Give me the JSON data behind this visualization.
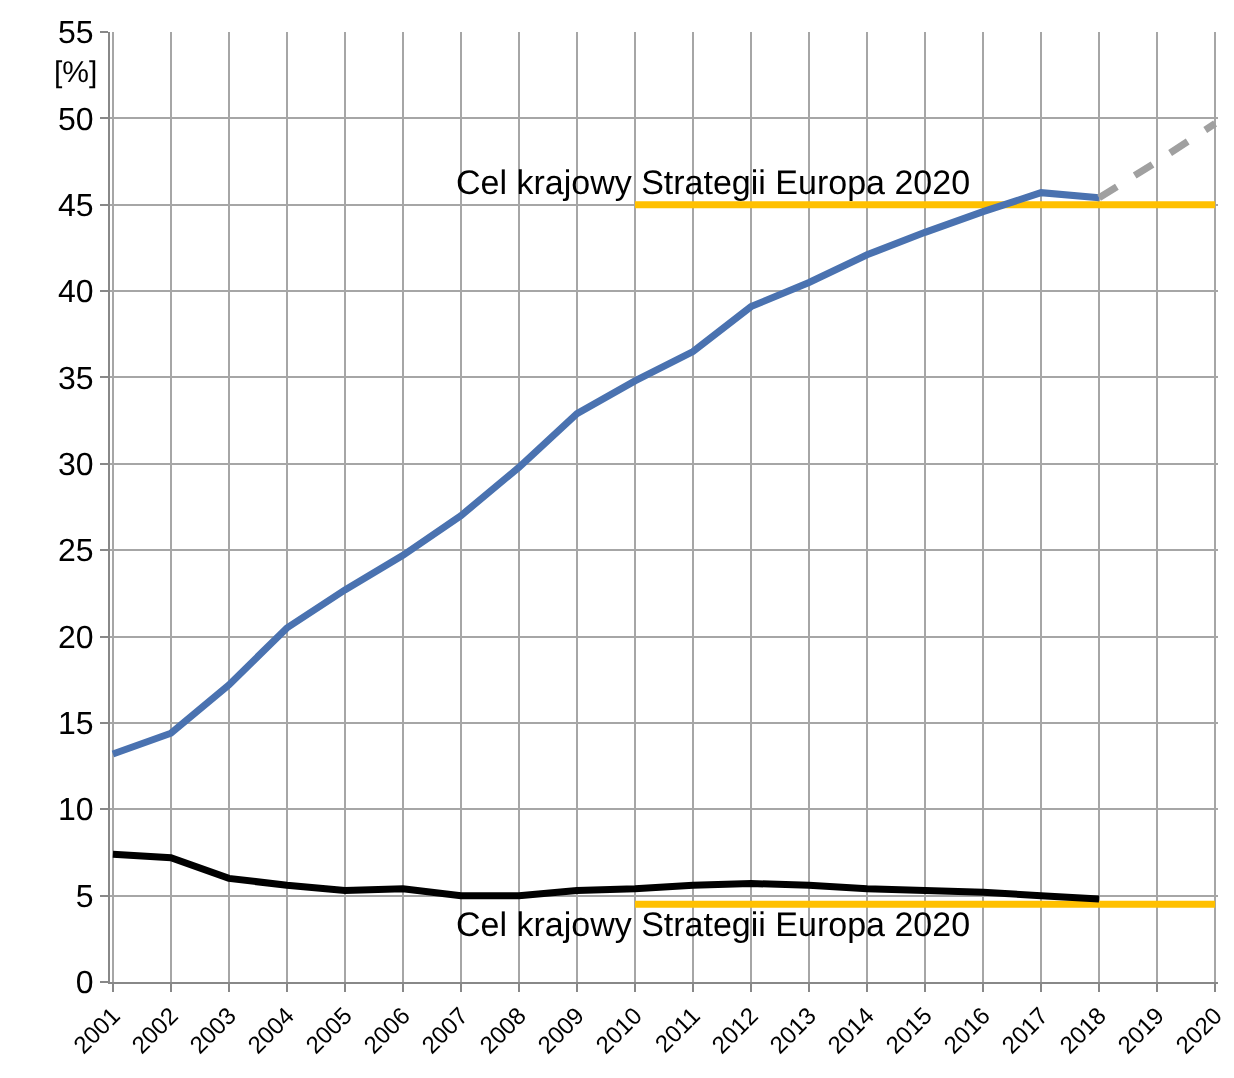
{
  "chart_data": {
    "type": "line",
    "ylabel": "[%]",
    "categories": [
      "2001",
      "2002",
      "2003",
      "2004",
      "2005",
      "2006",
      "2007",
      "2008",
      "2009",
      "2010",
      "2011",
      "2012",
      "2013",
      "2014",
      "2015",
      "2016",
      "2017",
      "2018",
      "2019",
      "2020"
    ],
    "series": [
      {
        "color": "#ffc000",
        "values": [
          null,
          null,
          null,
          null,
          null,
          null,
          null,
          null,
          null,
          45,
          45,
          45,
          45,
          45,
          45,
          45,
          45,
          45,
          45,
          45
        ]
      },
      {
        "color": "#ffc000",
        "values": [
          null,
          null,
          null,
          null,
          null,
          null,
          null,
          null,
          null,
          4.5,
          4.5,
          4.5,
          4.5,
          4.5,
          4.5,
          4.5,
          4.5,
          4.5,
          4.5,
          4.5
        ]
      },
      {
        "color": "#4a72b0",
        "values": [
          13.2,
          14.4,
          17.2,
          20.5,
          22.7,
          24.7,
          27.0,
          29.8,
          32.9,
          34.8,
          36.5,
          39.1,
          40.5,
          42.1,
          43.4,
          44.6,
          45.7,
          45.4,
          null,
          null
        ]
      },
      {
        "color": "#a0a0a0",
        "line_style": "dashed",
        "values": [
          null,
          null,
          null,
          null,
          null,
          null,
          null,
          null,
          null,
          null,
          null,
          null,
          null,
          null,
          null,
          null,
          null,
          45.4,
          47.5,
          49.7
        ]
      },
      {
        "color": "#000000",
        "values": [
          7.4,
          7.2,
          6.0,
          5.6,
          5.3,
          5.4,
          5.0,
          5.0,
          5.3,
          5.4,
          5.6,
          5.7,
          5.6,
          5.4,
          5.3,
          5.2,
          5.0,
          4.8,
          null,
          null
        ]
      }
    ],
    "annotations": [
      "Cel krajowy Strategii Europa 2020",
      "Cel krajowy Strategii Europa 2020"
    ],
    "ylim": [
      0,
      55
    ],
    "yticks": [
      0,
      5,
      10,
      15,
      20,
      25,
      30,
      35,
      40,
      45,
      50,
      55
    ],
    "grid": true,
    "marker": "none",
    "line_style": "solid"
  }
}
